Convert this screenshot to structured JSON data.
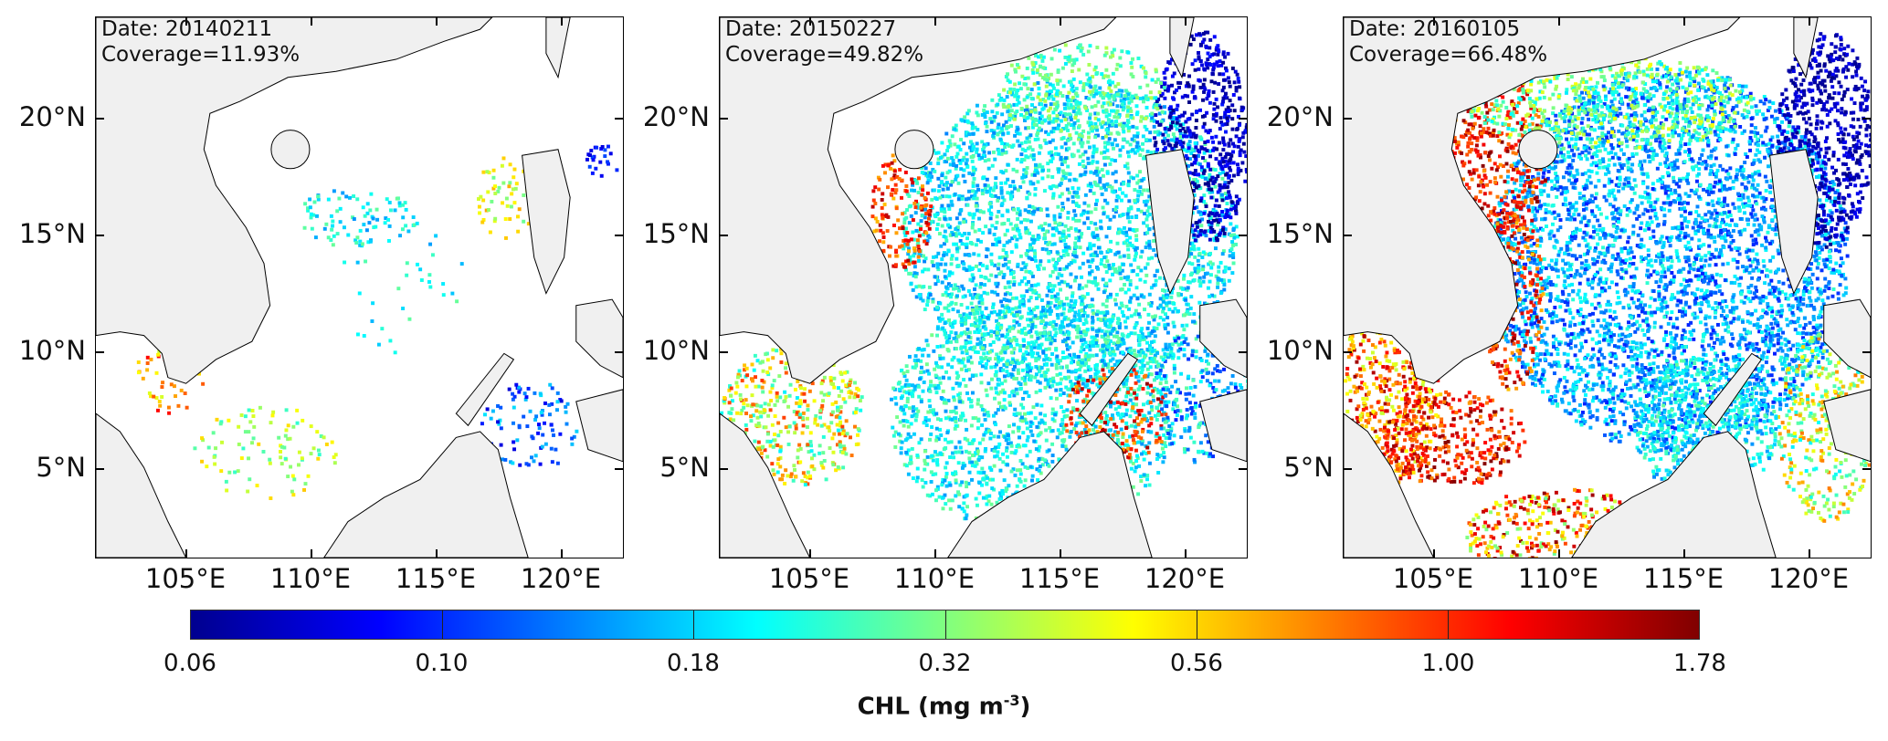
{
  "panels": [
    {
      "date_label": "Date: 20140211",
      "coverage_label": "Coverage=11.93%",
      "coverage_percent": 11.93
    },
    {
      "date_label": "Date: 20150227",
      "coverage_label": "Coverage=49.82%",
      "coverage_percent": 49.82
    },
    {
      "date_label": "Date: 20160105",
      "coverage_label": "Coverage=66.48%",
      "coverage_percent": 66.48
    }
  ],
  "lat_ticks": [
    "20°N",
    "15°N",
    "10°N",
    "5°N"
  ],
  "lon_ticks": [
    "105°E",
    "110°E",
    "115°E",
    "120°E"
  ],
  "colorbar": {
    "ticks": [
      "0.06",
      "0.10",
      "0.18",
      "0.32",
      "0.56",
      "1.00",
      "1.78"
    ],
    "label_main": "CHL (mg m",
    "label_sup": "-3",
    "label_end": ")",
    "scale": "log",
    "colormap": "jet",
    "range": [
      0.06,
      1.78
    ]
  },
  "colors": {
    "land": "#f0f0f0",
    "coastline": "#000000",
    "no_data": "#ffffff"
  }
}
